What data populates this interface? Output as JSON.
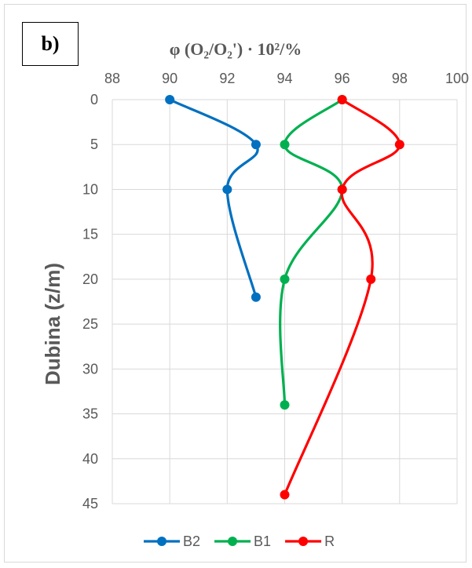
{
  "panel_label": "b)",
  "chart_data": {
    "type": "line",
    "title": "",
    "xlabel": "φ (O₂/O₂') · 10²/%",
    "ylabel": "Dubina (z/m)",
    "xlim": [
      88,
      100
    ],
    "ylim": [
      0,
      45
    ],
    "y_inverted": true,
    "x_axis_position": "top",
    "x_ticks": [
      88,
      90,
      92,
      94,
      96,
      98,
      100
    ],
    "y_ticks": [
      0,
      5,
      10,
      15,
      20,
      25,
      30,
      35,
      40,
      45
    ],
    "grid": true,
    "smooth": true,
    "legend_position": "bottom",
    "series": [
      {
        "name": "B2",
        "color": "#0070c0",
        "points": [
          [
            90,
            0
          ],
          [
            93,
            5
          ],
          [
            92,
            10
          ],
          [
            93,
            22
          ]
        ]
      },
      {
        "name": "B1",
        "color": "#00b050",
        "points": [
          [
            96,
            0
          ],
          [
            94,
            5
          ],
          [
            96,
            10
          ],
          [
            94,
            20
          ],
          [
            94,
            34
          ]
        ]
      },
      {
        "name": "R",
        "color": "#ff0000",
        "points": [
          [
            96,
            0
          ],
          [
            98,
            5
          ],
          [
            96,
            10
          ],
          [
            97,
            20
          ],
          [
            94,
            44
          ]
        ]
      }
    ]
  }
}
